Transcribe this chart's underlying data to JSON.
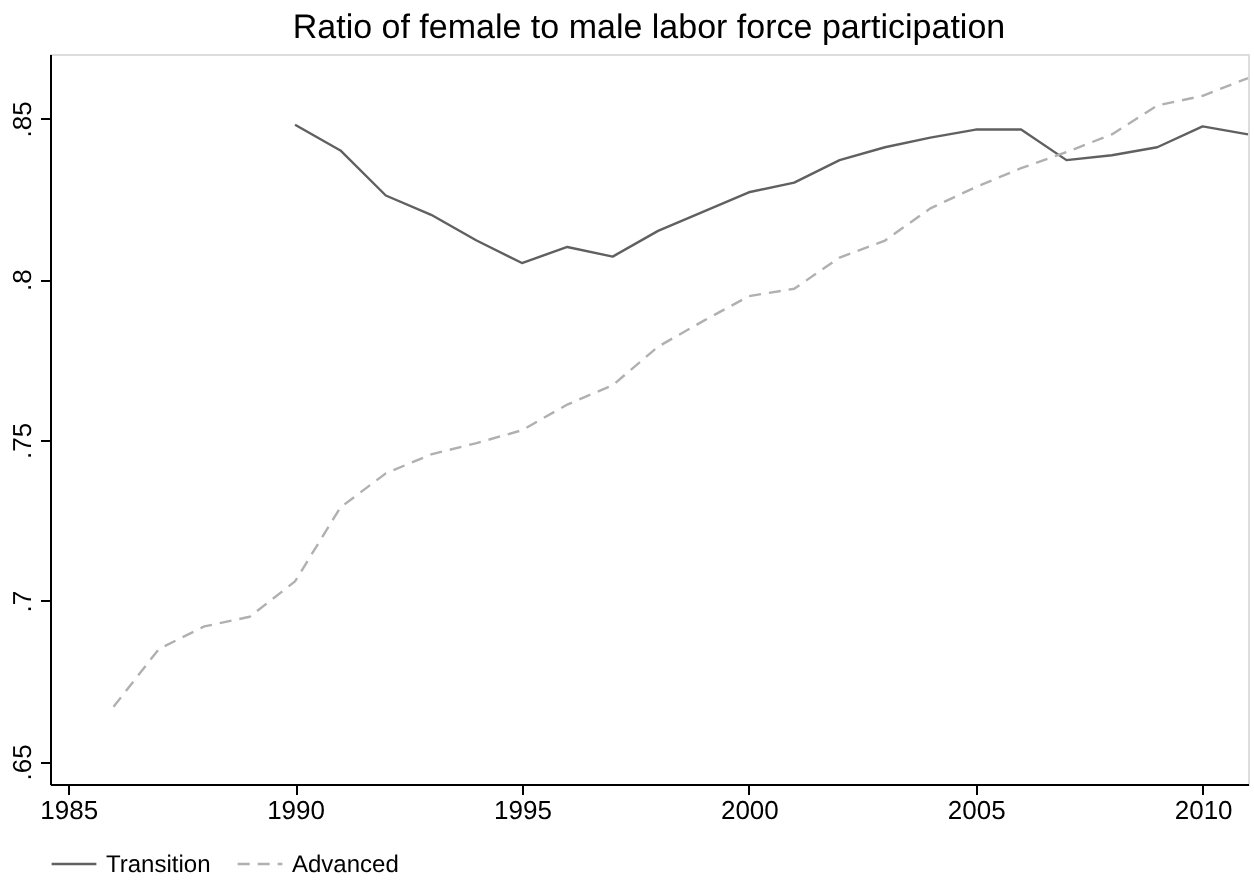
{
  "chart_data": {
    "type": "line",
    "title": "Ratio of female to male labor force participation",
    "xlim": [
      1984.6,
      2011
    ],
    "xticks": [
      1985,
      1990,
      1995,
      2000,
      2005,
      2010
    ],
    "ylim": [
      0.643,
      0.87
    ],
    "yticks": [
      {
        "value": 0.65,
        "label": ".65"
      },
      {
        "value": 0.7,
        "label": ".7"
      },
      {
        "value": 0.75,
        "label": ".75"
      },
      {
        "value": 0.8,
        "label": ".8"
      },
      {
        "value": 0.85,
        "label": ".85"
      }
    ],
    "grid": false,
    "legend": "bottom",
    "marker": "none",
    "series": [
      {
        "name": "Transition",
        "color": "#606060",
        "line_style": "solid",
        "x": [
          1990,
          1991,
          1992,
          1993,
          1994,
          1995,
          1996,
          1997,
          1998,
          1999,
          2000,
          2001,
          2002,
          2003,
          2004,
          2005,
          2006,
          2007,
          2008,
          2009,
          2010,
          2011
        ],
        "values": [
          0.848,
          0.84,
          0.826,
          0.82,
          0.812,
          0.805,
          0.81,
          0.807,
          0.815,
          0.821,
          0.827,
          0.83,
          0.837,
          0.841,
          0.844,
          0.8465,
          0.8465,
          0.837,
          0.8385,
          0.841,
          0.8475,
          0.845
        ]
      },
      {
        "name": "Advanced",
        "color": "#b0b0b0",
        "line_style": "dashed",
        "x": [
          1986,
          1987,
          1988,
          1989,
          1990,
          1991,
          1992,
          1993,
          1994,
          1995,
          1996,
          1997,
          1998,
          1999,
          2000,
          2001,
          2002,
          2003,
          2004,
          2005,
          2006,
          2007,
          2008,
          2009,
          2010,
          2011
        ],
        "values": [
          0.667,
          0.685,
          0.692,
          0.695,
          0.706,
          0.729,
          0.7396,
          0.7455,
          0.749,
          0.753,
          0.761,
          0.767,
          0.779,
          0.787,
          0.7947,
          0.797,
          0.8067,
          0.812,
          0.822,
          0.8286,
          0.8345,
          0.8395,
          0.845,
          0.854,
          0.857,
          0.8625
        ]
      }
    ]
  }
}
